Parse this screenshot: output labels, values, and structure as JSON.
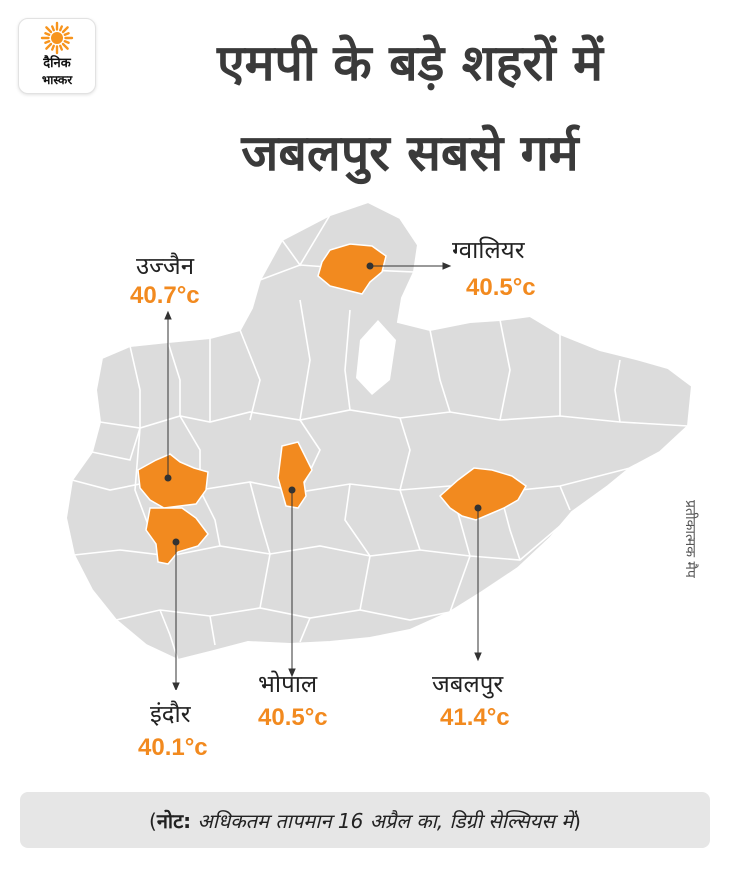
{
  "brand": {
    "line1": "दैनिक",
    "line2": "भास्कर",
    "logo_icon": "sun-icon",
    "sun_color": "#f7941d"
  },
  "title": {
    "line1": "एमपी के बड़े शहरों में",
    "line2": "जबलपुर सबसे गर्म"
  },
  "map": {
    "region": "Madhya Pradesh",
    "base_color": "#dcdcdc",
    "border_color": "#ffffff",
    "highlight_color": "#f28a1f",
    "side_note": "प्रतीकात्मक मैप"
  },
  "cities": [
    {
      "id": "ujjain",
      "name": "उज्जैन",
      "temp": "40.7°c"
    },
    {
      "id": "gwalior",
      "name": "ग्वालियर",
      "temp": "40.5°c"
    },
    {
      "id": "indore",
      "name": "इंदौर",
      "temp": "40.1°c"
    },
    {
      "id": "bhopal",
      "name": "भोपाल",
      "temp": "40.5°c"
    },
    {
      "id": "jabalpur",
      "name": "जबलपुर",
      "temp": "41.4°c"
    }
  ],
  "note": {
    "open_paren": "(",
    "label": "नोट:",
    "text": " अधिकतम तापमान 16 अप्रैल का, डिग्री सेल्सियस में",
    "close_paren": ")"
  }
}
